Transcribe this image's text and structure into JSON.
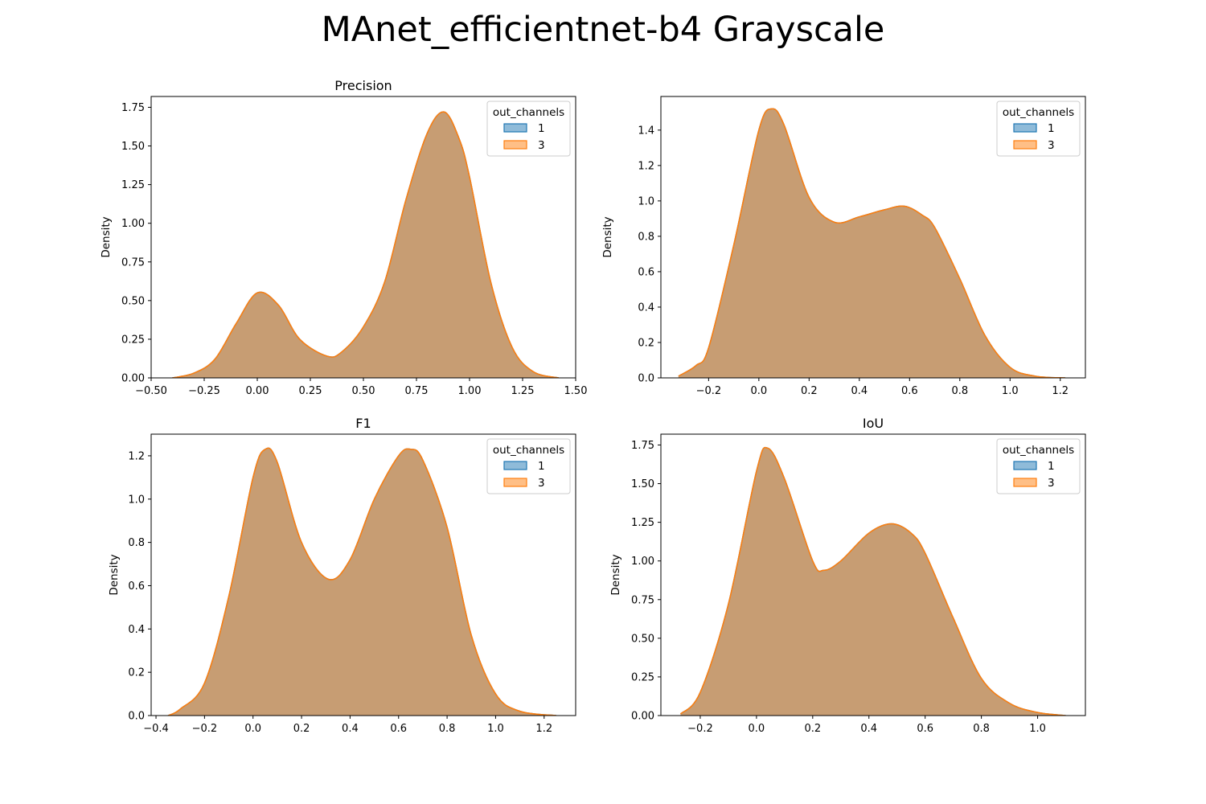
{
  "title": "MAnet_efficientnet-b4 Grayscale",
  "colors": {
    "series_1": "#1f77b4",
    "series_3": "#ff7f0e",
    "overlap_fill": "#c49a6c"
  },
  "chart_data": [
    {
      "type": "area",
      "title": "Precision",
      "xlabel": "",
      "ylabel": "Density",
      "xlim": [
        -0.5,
        1.5
      ],
      "ylim": [
        0,
        1.82
      ],
      "xticks": [
        -0.5,
        -0.25,
        0.0,
        0.25,
        0.5,
        0.75,
        1.0,
        1.25,
        1.5
      ],
      "xtick_labels": [
        "−0.50",
        "−0.25",
        "0.00",
        "0.25",
        "0.50",
        "0.75",
        "1.00",
        "1.25",
        "1.50"
      ],
      "yticks": [
        0,
        0.25,
        0.5,
        0.75,
        1.0,
        1.25,
        1.5,
        1.75
      ],
      "ytick_labels": [
        "0.00",
        "0.25",
        "0.50",
        "0.75",
        "1.00",
        "1.25",
        "1.50",
        "1.75"
      ],
      "legend": {
        "title": "out_channels",
        "entries": [
          "1",
          "3"
        ],
        "placement": "top-right"
      },
      "series": [
        {
          "name": "1",
          "x": [
            -0.4,
            -0.3,
            -0.2,
            -0.1,
            0.0,
            0.1,
            0.2,
            0.33,
            0.4,
            0.5,
            0.6,
            0.7,
            0.8,
            0.88,
            0.95,
            1.0,
            1.1,
            1.2,
            1.3,
            1.42
          ],
          "y": [
            0.0,
            0.03,
            0.12,
            0.35,
            0.55,
            0.47,
            0.25,
            0.14,
            0.17,
            0.33,
            0.62,
            1.15,
            1.58,
            1.72,
            1.55,
            1.3,
            0.62,
            0.2,
            0.04,
            0.0
          ]
        },
        {
          "name": "3",
          "x": [
            -0.4,
            -0.3,
            -0.2,
            -0.1,
            0.0,
            0.1,
            0.2,
            0.33,
            0.4,
            0.5,
            0.6,
            0.7,
            0.8,
            0.88,
            0.95,
            1.0,
            1.1,
            1.2,
            1.3,
            1.42
          ],
          "y": [
            0.0,
            0.03,
            0.12,
            0.35,
            0.55,
            0.47,
            0.25,
            0.14,
            0.17,
            0.33,
            0.62,
            1.15,
            1.58,
            1.72,
            1.55,
            1.3,
            0.62,
            0.2,
            0.04,
            0.0
          ]
        }
      ]
    },
    {
      "type": "area",
      "title": "",
      "xlabel": "",
      "ylabel": "Density",
      "xlim": [
        -0.39,
        1.3
      ],
      "ylim": [
        0,
        1.59
      ],
      "xticks": [
        -0.2,
        0.0,
        0.2,
        0.4,
        0.6,
        0.8,
        1.0,
        1.2
      ],
      "xtick_labels": [
        "−0.2",
        "0.0",
        "0.2",
        "0.4",
        "0.6",
        "0.8",
        "1.0",
        "1.2"
      ],
      "yticks": [
        0,
        0.2,
        0.4,
        0.6,
        0.8,
        1.0,
        1.2,
        1.4
      ],
      "ytick_labels": [
        "0.0",
        "0.2",
        "0.4",
        "0.6",
        "0.8",
        "1.0",
        "1.2",
        "1.4"
      ],
      "legend": {
        "title": "out_channels",
        "entries": [
          "1",
          "3"
        ],
        "placement": "top-right"
      },
      "series": [
        {
          "name": "1",
          "x": [
            -0.32,
            -0.25,
            -0.2,
            -0.1,
            0.0,
            0.05,
            0.1,
            0.2,
            0.3,
            0.4,
            0.5,
            0.58,
            0.65,
            0.7,
            0.8,
            0.9,
            1.0,
            1.1,
            1.22
          ],
          "y": [
            0.01,
            0.07,
            0.17,
            0.75,
            1.4,
            1.52,
            1.43,
            1.02,
            0.88,
            0.91,
            0.95,
            0.97,
            0.92,
            0.85,
            0.56,
            0.24,
            0.06,
            0.01,
            0.0
          ]
        },
        {
          "name": "3",
          "x": [
            -0.32,
            -0.25,
            -0.2,
            -0.1,
            0.0,
            0.05,
            0.1,
            0.2,
            0.3,
            0.4,
            0.5,
            0.58,
            0.65,
            0.7,
            0.8,
            0.9,
            1.0,
            1.1,
            1.22
          ],
          "y": [
            0.01,
            0.07,
            0.17,
            0.75,
            1.4,
            1.52,
            1.43,
            1.02,
            0.88,
            0.91,
            0.95,
            0.97,
            0.92,
            0.85,
            0.56,
            0.24,
            0.06,
            0.01,
            0.0
          ]
        }
      ]
    },
    {
      "type": "area",
      "title": "F1",
      "xlabel": "",
      "ylabel": "Density",
      "xlim": [
        -0.42,
        1.33
      ],
      "ylim": [
        0,
        1.3
      ],
      "xticks": [
        -0.4,
        -0.2,
        0.0,
        0.2,
        0.4,
        0.6,
        0.8,
        1.0,
        1.2
      ],
      "xtick_labels": [
        "−0.4",
        "−0.2",
        "0.0",
        "0.2",
        "0.4",
        "0.6",
        "0.8",
        "1.0",
        "1.2"
      ],
      "yticks": [
        0,
        0.2,
        0.4,
        0.6,
        0.8,
        1.0,
        1.2
      ],
      "ytick_labels": [
        "0.0",
        "0.2",
        "0.4",
        "0.6",
        "0.8",
        "1.0",
        "1.2"
      ],
      "legend": {
        "title": "out_channels",
        "entries": [
          "1",
          "3"
        ],
        "placement": "top-right"
      },
      "series": [
        {
          "name": "1",
          "x": [
            -0.35,
            -0.3,
            -0.2,
            -0.1,
            0.0,
            0.05,
            0.1,
            0.2,
            0.31,
            0.4,
            0.5,
            0.6,
            0.65,
            0.7,
            0.8,
            0.9,
            1.0,
            1.1,
            1.25
          ],
          "y": [
            0.0,
            0.03,
            0.15,
            0.55,
            1.1,
            1.23,
            1.17,
            0.8,
            0.63,
            0.72,
            1.0,
            1.2,
            1.23,
            1.18,
            0.87,
            0.37,
            0.1,
            0.02,
            0.0
          ]
        },
        {
          "name": "3",
          "x": [
            -0.35,
            -0.3,
            -0.2,
            -0.1,
            0.0,
            0.05,
            0.1,
            0.2,
            0.31,
            0.4,
            0.5,
            0.6,
            0.65,
            0.7,
            0.8,
            0.9,
            1.0,
            1.1,
            1.25
          ],
          "y": [
            0.0,
            0.03,
            0.15,
            0.55,
            1.1,
            1.23,
            1.17,
            0.8,
            0.63,
            0.72,
            1.0,
            1.2,
            1.23,
            1.18,
            0.87,
            0.37,
            0.1,
            0.02,
            0.0
          ]
        }
      ]
    },
    {
      "type": "area",
      "title": "IoU",
      "xlabel": "",
      "ylabel": "Density",
      "xlim": [
        -0.34,
        1.17
      ],
      "ylim": [
        0,
        1.82
      ],
      "xticks": [
        -0.2,
        0.0,
        0.2,
        0.4,
        0.6,
        0.8,
        1.0
      ],
      "xtick_labels": [
        "−0.2",
        "0.0",
        "0.2",
        "0.4",
        "0.6",
        "0.8",
        "1.0"
      ],
      "yticks": [
        0,
        0.25,
        0.5,
        0.75,
        1.0,
        1.25,
        1.5,
        1.75
      ],
      "ytick_labels": [
        "0.00",
        "0.25",
        "0.50",
        "0.75",
        "1.00",
        "1.25",
        "1.50",
        "1.75"
      ],
      "legend": {
        "title": "out_channels",
        "entries": [
          "1",
          "3"
        ],
        "placement": "top-right"
      },
      "series": [
        {
          "name": "1",
          "x": [
            -0.27,
            -0.2,
            -0.1,
            0.0,
            0.04,
            0.1,
            0.2,
            0.24,
            0.3,
            0.4,
            0.48,
            0.55,
            0.6,
            0.7,
            0.8,
            0.9,
            1.0,
            1.1
          ],
          "y": [
            0.01,
            0.15,
            0.72,
            1.58,
            1.73,
            1.53,
            1.0,
            0.94,
            1.0,
            1.18,
            1.24,
            1.18,
            1.05,
            0.63,
            0.24,
            0.08,
            0.02,
            0.0
          ]
        },
        {
          "name": "3",
          "x": [
            -0.27,
            -0.2,
            -0.1,
            0.0,
            0.04,
            0.1,
            0.2,
            0.24,
            0.3,
            0.4,
            0.48,
            0.55,
            0.6,
            0.7,
            0.8,
            0.9,
            1.0,
            1.1
          ],
          "y": [
            0.01,
            0.15,
            0.72,
            1.58,
            1.73,
            1.53,
            1.0,
            0.94,
            1.0,
            1.18,
            1.24,
            1.18,
            1.05,
            0.63,
            0.24,
            0.08,
            0.02,
            0.0
          ]
        }
      ]
    }
  ]
}
